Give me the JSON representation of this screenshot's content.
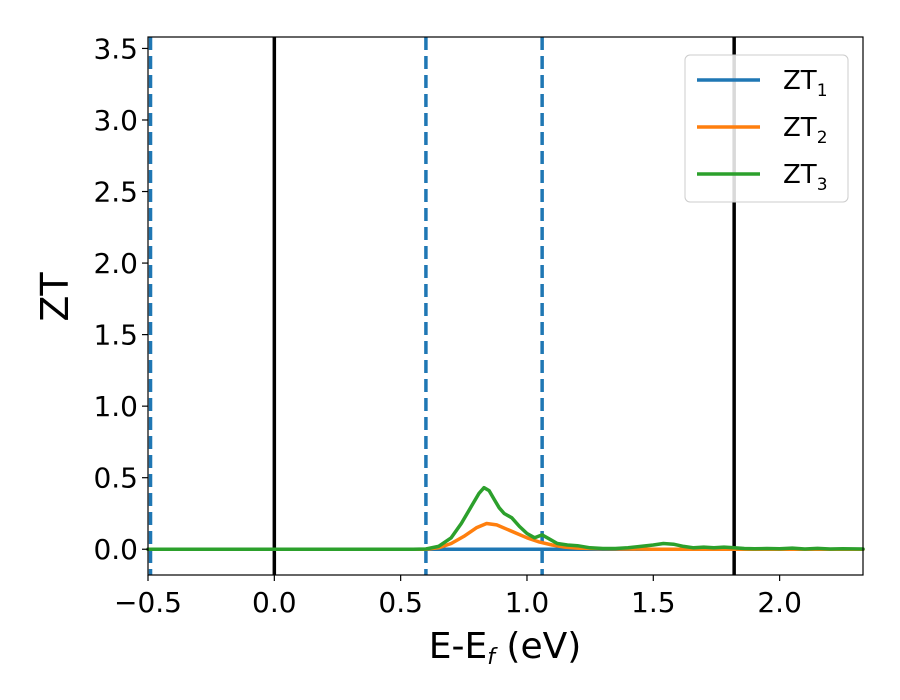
{
  "chart_data": {
    "type": "line",
    "xlabel": "E-E",
    "xlabel_sub": "f",
    "xlabel_unit": " (eV)",
    "ylabel": "ZT",
    "xlim": [
      -0.5,
      2.33
    ],
    "ylim": [
      -0.18,
      3.58
    ],
    "xticks": [
      {
        "value": -0.5,
        "label": "−0.5"
      },
      {
        "value": 0.0,
        "label": "0.0"
      },
      {
        "value": 0.5,
        "label": "0.5"
      },
      {
        "value": 1.0,
        "label": "1.0"
      },
      {
        "value": 1.5,
        "label": "1.5"
      },
      {
        "value": 2.0,
        "label": "2.0"
      }
    ],
    "yticks": [
      {
        "value": 0.0,
        "label": "0.0"
      },
      {
        "value": 0.5,
        "label": "0.5"
      },
      {
        "value": 1.0,
        "label": "1.0"
      },
      {
        "value": 1.5,
        "label": "1.5"
      },
      {
        "value": 2.0,
        "label": "2.0"
      },
      {
        "value": 2.5,
        "label": "2.5"
      },
      {
        "value": 3.0,
        "label": "3.0"
      },
      {
        "value": 3.5,
        "label": "3.5"
      }
    ],
    "vlines_solid": [
      0.0,
      1.82
    ],
    "vlines_dashed": [
      -0.49,
      0.6,
      1.06
    ],
    "legend_position": "upper-right",
    "grid": false,
    "series": [
      {
        "name": "ZT",
        "sub": "1",
        "color": "#1f77b4",
        "x": [
          -0.5,
          0.0,
          0.5,
          1.0,
          1.5,
          1.8,
          2.0,
          2.33
        ],
        "y": [
          0.0,
          0.0,
          0.0,
          0.0,
          0.0,
          0.0,
          0.0,
          0.0
        ]
      },
      {
        "name": "ZT",
        "sub": "2",
        "color": "#ff7f0e",
        "x": [
          -0.5,
          0.0,
          0.6,
          0.65,
          0.7,
          0.75,
          0.8,
          0.84,
          0.88,
          0.92,
          0.96,
          1.0,
          1.05,
          1.1,
          1.15,
          1.2,
          1.3,
          1.5,
          2.0,
          2.33
        ],
        "y": [
          0.0,
          0.0,
          0.0,
          0.01,
          0.04,
          0.09,
          0.15,
          0.18,
          0.17,
          0.14,
          0.11,
          0.08,
          0.05,
          0.03,
          0.015,
          0.008,
          0.003,
          0.0,
          0.0,
          0.0
        ]
      },
      {
        "name": "ZT",
        "sub": "3",
        "color": "#2ca02c",
        "x": [
          -0.5,
          0.0,
          0.55,
          0.6,
          0.65,
          0.7,
          0.74,
          0.78,
          0.81,
          0.83,
          0.85,
          0.87,
          0.89,
          0.91,
          0.94,
          0.97,
          1.0,
          1.03,
          1.06,
          1.09,
          1.12,
          1.16,
          1.2,
          1.25,
          1.3,
          1.35,
          1.4,
          1.45,
          1.5,
          1.54,
          1.58,
          1.62,
          1.66,
          1.7,
          1.74,
          1.78,
          1.82,
          1.86,
          1.9,
          1.95,
          2.0,
          2.05,
          2.1,
          2.15,
          2.2,
          2.25,
          2.33
        ],
        "y": [
          0.0,
          0.0,
          0.0,
          0.002,
          0.02,
          0.08,
          0.18,
          0.3,
          0.39,
          0.43,
          0.41,
          0.35,
          0.29,
          0.25,
          0.22,
          0.16,
          0.11,
          0.08,
          0.1,
          0.07,
          0.04,
          0.03,
          0.025,
          0.01,
          0.005,
          0.005,
          0.01,
          0.02,
          0.03,
          0.04,
          0.035,
          0.02,
          0.01,
          0.015,
          0.01,
          0.015,
          0.01,
          0.005,
          0.003,
          0.005,
          0.003,
          0.008,
          0.002,
          0.006,
          0.002,
          0.004,
          0.002
        ]
      }
    ]
  }
}
